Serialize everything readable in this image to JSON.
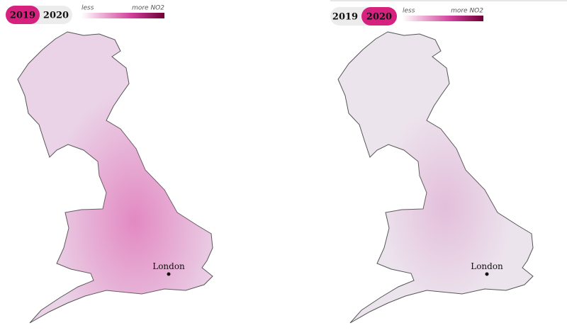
{
  "panels": [
    {
      "years": [
        "2019",
        "2020"
      ],
      "legend": {
        "low": "less",
        "high": "more NO2"
      },
      "city": "London"
    },
    {
      "years": [
        "2019",
        "2020"
      ],
      "legend": {
        "low": "less",
        "high": "more NO2"
      },
      "city": "London"
    }
  ]
}
